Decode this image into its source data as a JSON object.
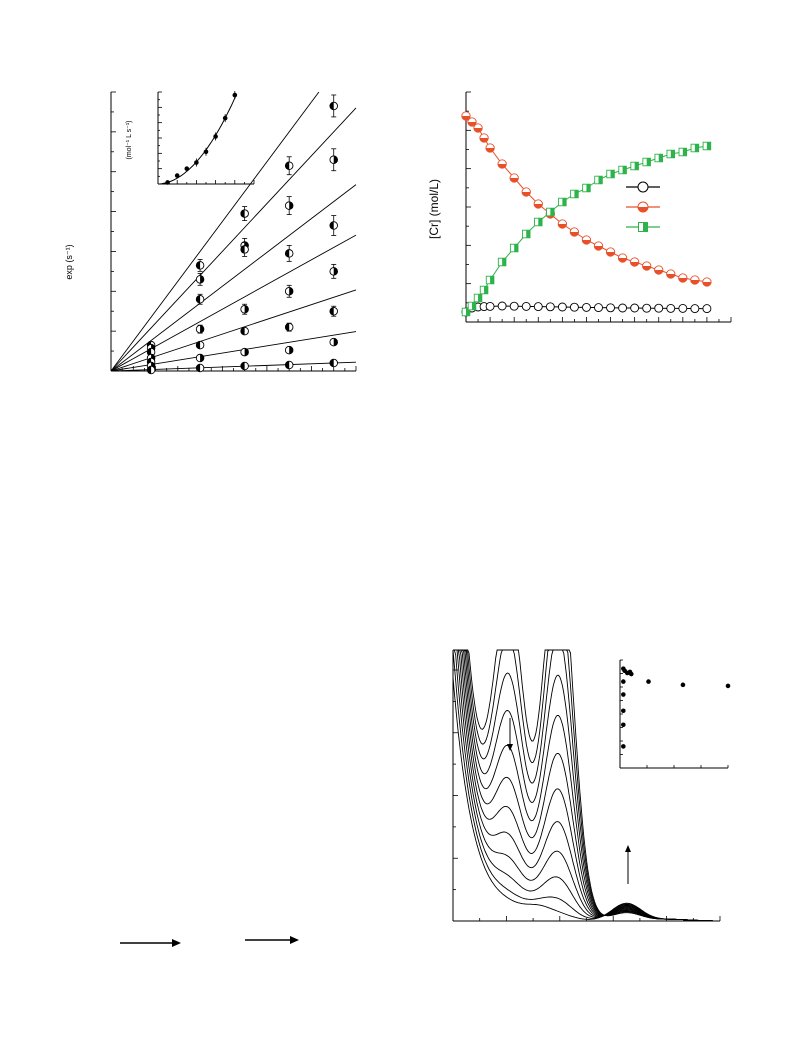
{
  "figure_top_left": {
    "ylabel": "exp (s⁻¹)",
    "inset_ylabel": "(mol⁻¹ L s⁻¹)"
  },
  "figure_top_right": {
    "ylabel": "[Cr] (mol/L)"
  },
  "chart_data": [
    {
      "type": "scatter",
      "title": "",
      "xlabel": "",
      "ylabel": "exp (s⁻¹)",
      "xlim": [
        0,
        11
      ],
      "ylim": [
        0,
        14
      ],
      "x": [
        1.8,
        4,
        6,
        8,
        10
      ],
      "series": [
        {
          "values": [
            1.3,
            5.3,
            7.9,
            10.3,
            13.3
          ],
          "error": [
            0,
            0.3,
            0.35,
            0.45,
            0.55
          ]
        },
        {
          "values": [
            1.15,
            4.6,
            6.3,
            8.3,
            10.6
          ],
          "error": [
            0,
            0.3,
            0.35,
            0.45,
            0.55
          ]
        },
        {
          "values": [
            0.95,
            3.6,
            6.1,
            5.9,
            7.3
          ],
          "error": [
            0,
            0.25,
            0.35,
            0.4,
            0.5
          ]
        },
        {
          "values": [
            0.65,
            2.1,
            3.1,
            4.0,
            5.0
          ],
          "error": [
            0,
            0.2,
            0.25,
            0.3,
            0.35
          ]
        },
        {
          "values": [
            0.45,
            1.3,
            2.0,
            2.2,
            3.0
          ],
          "error": [
            0,
            0.1,
            0.15,
            0.2,
            0.25
          ]
        },
        {
          "values": [
            0.25,
            0.65,
            0.95,
            1.05,
            1.45
          ],
          "error": [
            0,
            0.05,
            0.05,
            0.05,
            0.08
          ]
        },
        {
          "values": [
            0.05,
            0.15,
            0.25,
            0.3,
            0.4
          ],
          "error": [
            0,
            0,
            0,
            0,
            0
          ]
        }
      ],
      "lines": [
        {
          "slope": 1.5
        },
        {
          "slope": 1.2
        },
        {
          "slope": 0.85
        },
        {
          "slope": 0.62
        },
        {
          "slope": 0.37
        },
        {
          "slope": 0.18
        },
        {
          "slope": 0.04
        }
      ],
      "inset": {
        "type": "scatter",
        "x": [
          1,
          2,
          3,
          4,
          5,
          6,
          7,
          8
        ],
        "values": [
          0.1,
          0.55,
          1.0,
          1.4,
          2.1,
          3.1,
          4.3,
          5.8
        ],
        "xlim": [
          0,
          10
        ],
        "ylim": [
          0,
          6
        ],
        "ylabel": "(mol⁻¹ L s⁻¹)"
      }
    },
    {
      "type": "line",
      "title": "",
      "xlabel": "",
      "ylabel": "[Cr] (mol/L)",
      "xlim": [
        0,
        22
      ],
      "ylim": [
        -0.05,
        1.1
      ],
      "x": [
        0,
        0.5,
        1,
        1.5,
        2,
        3,
        4,
        5,
        6,
        7,
        8,
        9,
        10,
        11,
        12,
        13,
        14,
        15,
        16,
        17,
        18,
        19,
        20
      ],
      "series": [
        {
          "color": "#000000",
          "marker": "open-circle",
          "values": [
            0.0,
            0.02,
            0.025,
            0.027,
            0.028,
            0.03,
            0.029,
            0.028,
            0.027,
            0.026,
            0.025,
            0.024,
            0.023,
            0.022,
            0.021,
            0.02,
            0.02,
            0.019,
            0.019,
            0.018,
            0.018,
            0.017,
            0.017
          ]
        },
        {
          "color": "#e8502a",
          "marker": "half-filled-circle",
          "values": [
            0.98,
            0.95,
            0.92,
            0.87,
            0.82,
            0.74,
            0.67,
            0.6,
            0.54,
            0.49,
            0.44,
            0.4,
            0.36,
            0.33,
            0.3,
            0.27,
            0.25,
            0.23,
            0.21,
            0.19,
            0.17,
            0.16,
            0.15
          ]
        },
        {
          "color": "#2db34a",
          "marker": "half-filled-square",
          "values": [
            0.0,
            0.03,
            0.07,
            0.11,
            0.16,
            0.25,
            0.32,
            0.39,
            0.45,
            0.5,
            0.55,
            0.59,
            0.62,
            0.66,
            0.69,
            0.71,
            0.73,
            0.75,
            0.77,
            0.79,
            0.8,
            0.82,
            0.83
          ]
        }
      ]
    },
    {
      "type": "line",
      "title": "",
      "xlabel": "",
      "ylabel": "",
      "xlim": [
        0,
        10
      ],
      "ylim": [
        0,
        1.0
      ],
      "series_count": 12,
      "inset": {
        "type": "scatter",
        "x": [
          0.05,
          0.1,
          0.2,
          0.3,
          0.35,
          0.05,
          0.05,
          0.05,
          0.05,
          0.05,
          1.0,
          2.3,
          4.0
        ],
        "values": [
          0.92,
          0.9,
          0.88,
          0.89,
          0.87,
          0.8,
          0.68,
          0.53,
          0.4,
          0.2,
          0.8,
          0.77,
          0.76
        ]
      }
    }
  ],
  "reaction_scheme": {
    "arrows": [
      "right-arrow",
      "right-arrow"
    ]
  }
}
